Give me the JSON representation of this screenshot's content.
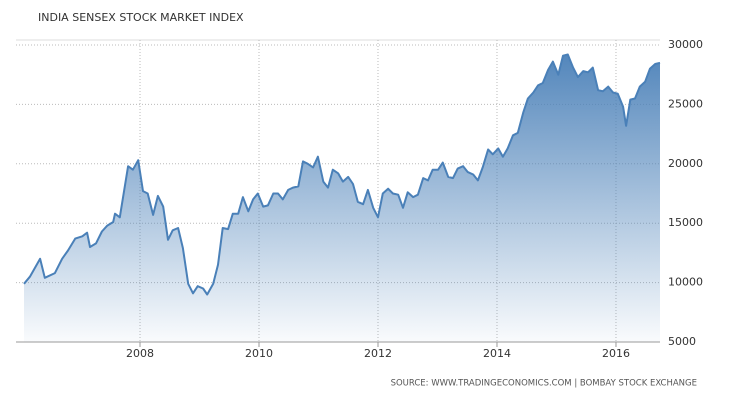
{
  "chart_data": {
    "type": "area",
    "title": "INDIA SENSEX STOCK MARKET INDEX",
    "source": "SOURCE: WWW.TRADINGECONOMICS.COM | BOMBAY STOCK EXCHANGE",
    "color": "#4a80b8",
    "grid": true,
    "y_axis_side": "right",
    "xlim": [
      2006.05,
      2016.74
    ],
    "xticks": [
      2008,
      2010,
      2012,
      2014,
      2016
    ],
    "ylim": [
      5000,
      30000
    ],
    "yticks": [
      5000,
      10000,
      15000,
      20000,
      25000,
      30000
    ],
    "x": [
      2006.05,
      2006.15,
      2006.32,
      2006.4,
      2006.57,
      2006.69,
      2006.79,
      2006.91,
      2007.03,
      2007.11,
      2007.16,
      2007.26,
      2007.36,
      2007.45,
      2007.55,
      2007.58,
      2007.66,
      2007.8,
      2007.88,
      2007.97,
      2008.05,
      2008.13,
      2008.22,
      2008.3,
      2008.39,
      2008.47,
      2008.55,
      2008.64,
      2008.72,
      2008.81,
      2008.89,
      2008.97,
      2009.06,
      2009.13,
      2009.23,
      2009.31,
      2009.39,
      2009.48,
      2009.56,
      2009.65,
      2009.73,
      2009.82,
      2009.9,
      2009.98,
      2010.07,
      2010.15,
      2010.24,
      2010.32,
      2010.4,
      2010.49,
      2010.57,
      2010.66,
      2010.74,
      2010.82,
      2010.91,
      2010.99,
      2011.08,
      2011.16,
      2011.24,
      2011.33,
      2011.41,
      2011.5,
      2011.58,
      2011.66,
      2011.75,
      2011.83,
      2011.92,
      2012.0,
      2012.08,
      2012.17,
      2012.25,
      2012.34,
      2012.42,
      2012.5,
      2012.59,
      2012.67,
      2012.76,
      2012.84,
      2012.92,
      2013.01,
      2013.09,
      2013.18,
      2013.26,
      2013.34,
      2013.43,
      2013.51,
      2013.6,
      2013.68,
      2013.76,
      2013.85,
      2013.93,
      2014.02,
      2014.1,
      2014.18,
      2014.27,
      2014.35,
      2014.44,
      2014.52,
      2014.61,
      2014.69,
      2014.77,
      2014.86,
      2014.94,
      2015.03,
      2015.11,
      2015.19,
      2015.28,
      2015.36,
      2015.45,
      2015.53,
      2015.61,
      2015.7,
      2015.78,
      2015.87,
      2015.95,
      2016.03,
      2016.12,
      2016.17,
      2016.24,
      2016.32,
      2016.4,
      2016.49,
      2016.57,
      2016.66,
      2016.74
    ],
    "values": [
      9900,
      10500,
      12000,
      10400,
      10800,
      12000,
      12700,
      13700,
      13900,
      14200,
      13000,
      13300,
      14300,
      14800,
      15100,
      15800,
      15500,
      19800,
      19500,
      20300,
      17700,
      17500,
      15700,
      17300,
      16400,
      13600,
      14400,
      14600,
      12900,
      9900,
      9100,
      9700,
      9500,
      9000,
      9900,
      11500,
      14600,
      14500,
      15800,
      15800,
      17200,
      16000,
      17000,
      17500,
      16400,
      16500,
      17500,
      17500,
      17000,
      17800,
      18000,
      18100,
      20200,
      20000,
      19700,
      20600,
      18500,
      18000,
      19500,
      19200,
      18500,
      18900,
      18300,
      16800,
      16600,
      17800,
      16300,
      15500,
      17500,
      17900,
      17500,
      17400,
      16300,
      17600,
      17200,
      17400,
      18800,
      18600,
      19500,
      19500,
      20100,
      18900,
      18800,
      19600,
      19800,
      19300,
      19100,
      18600,
      19700,
      21200,
      20800,
      21300,
      20600,
      21300,
      22400,
      22600,
      24300,
      25500,
      26000,
      26600,
      26800,
      27900,
      28600,
      27500,
      29100,
      29200,
      28100,
      27300,
      27800,
      27700,
      28100,
      26200,
      26100,
      26500,
      26000,
      25900,
      24800,
      23200,
      25400,
      25500,
      26500,
      26900,
      28000,
      28400,
      28500
    ]
  }
}
